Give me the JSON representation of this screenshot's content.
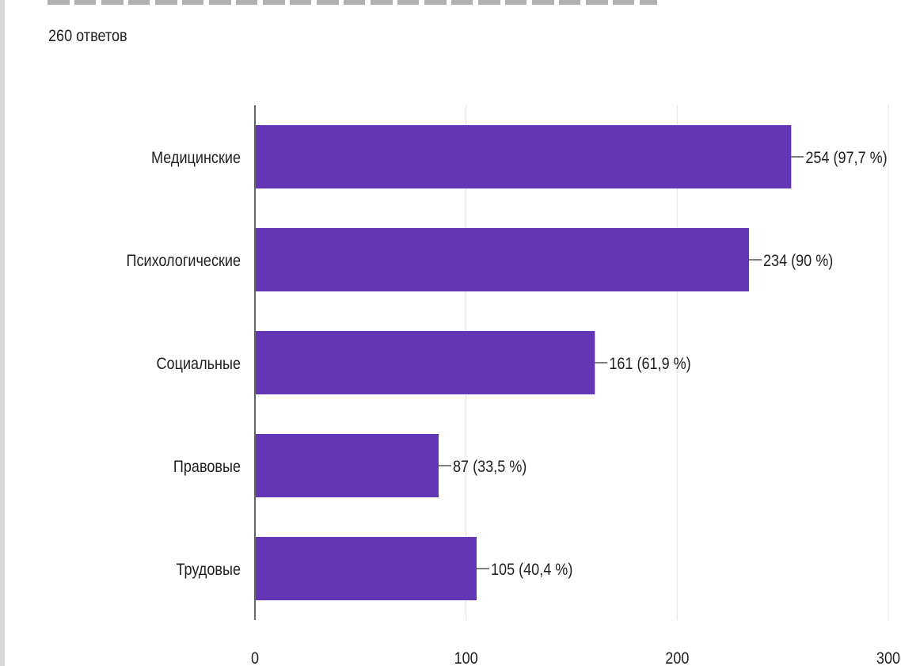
{
  "header": {
    "responses_text": "260 ответов"
  },
  "colors": {
    "bar": "#6236b5",
    "grid": "#e3e3e3",
    "axis": "#333333",
    "text": "#212121"
  },
  "chart_data": {
    "type": "bar",
    "orientation": "horizontal",
    "categories": [
      "Медицинские",
      "Психологические",
      "Социальные",
      "Правовые",
      "Трудовые"
    ],
    "values": [
      254,
      234,
      161,
      87,
      105
    ],
    "value_labels": [
      "254 (97,7 %)",
      "234 (90 %)",
      "161 (61,9 %)",
      "87 (33,5 %)",
      "105 (40,4 %)"
    ],
    "xlim": [
      0,
      300
    ],
    "xticks": [
      "0",
      "100",
      "200",
      "300"
    ],
    "grid": true,
    "legend": false
  }
}
